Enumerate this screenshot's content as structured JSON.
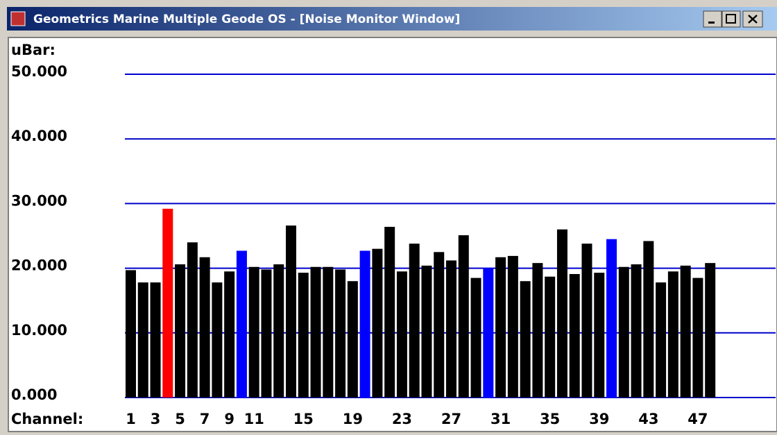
{
  "window": {
    "title": "Geometrics Marine Multiple Geode OS - [Noise Monitor Window]"
  },
  "chart_data": {
    "type": "bar",
    "y_label": "uBar:",
    "x_label": "Channel:",
    "categories": [
      "1",
      null,
      "3",
      null,
      "5",
      null,
      "7",
      null,
      "9",
      null,
      "11",
      null,
      null,
      null,
      "15",
      null,
      null,
      null,
      "19",
      null,
      null,
      null,
      "23",
      null,
      null,
      null,
      "27",
      null,
      null,
      null,
      "31",
      null,
      null,
      null,
      "35",
      null,
      null,
      null,
      "39",
      null,
      null,
      null,
      "43",
      null,
      null,
      null,
      "47",
      null
    ],
    "values": [
      19.7,
      17.8,
      17.8,
      29.2,
      20.6,
      24.0,
      21.7,
      17.8,
      19.5,
      22.7,
      20.2,
      19.8,
      20.6,
      26.6,
      19.3,
      20.2,
      20.2,
      19.8,
      18.0,
      22.7,
      23.0,
      26.4,
      19.5,
      23.8,
      20.4,
      22.5,
      21.2,
      25.1,
      18.5,
      20.0,
      21.7,
      21.9,
      18.0,
      20.8,
      18.7,
      26.0,
      19.1,
      23.8,
      19.3,
      24.5,
      20.2,
      20.6,
      24.2,
      17.8,
      19.5,
      20.4,
      18.5,
      20.8
    ],
    "colors": [
      "#000000",
      "#000000",
      "#000000",
      "#ff0000",
      "#000000",
      "#000000",
      "#000000",
      "#000000",
      "#000000",
      "#0000ff",
      "#000000",
      "#000000",
      "#000000",
      "#000000",
      "#000000",
      "#000000",
      "#000000",
      "#000000",
      "#000000",
      "#0000ff",
      "#000000",
      "#000000",
      "#000000",
      "#000000",
      "#000000",
      "#000000",
      "#000000",
      "#000000",
      "#000000",
      "#0000ff",
      "#000000",
      "#000000",
      "#000000",
      "#000000",
      "#000000",
      "#000000",
      "#000000",
      "#000000",
      "#000000",
      "#0000ff",
      "#000000",
      "#000000",
      "#000000",
      "#000000",
      "#000000",
      "#000000",
      "#000000",
      "#000000"
    ],
    "ylim": [
      0,
      50
    ],
    "yticks": [
      {
        "value": 0,
        "label": "0.000"
      },
      {
        "value": 10,
        "label": "10.000"
      },
      {
        "value": 20,
        "label": "20.000"
      },
      {
        "value": 30,
        "label": "30.000"
      },
      {
        "value": 40,
        "label": "40.000"
      },
      {
        "value": 50,
        "label": "50.000"
      }
    ],
    "grid": true,
    "grid_color": "#0000cc"
  }
}
